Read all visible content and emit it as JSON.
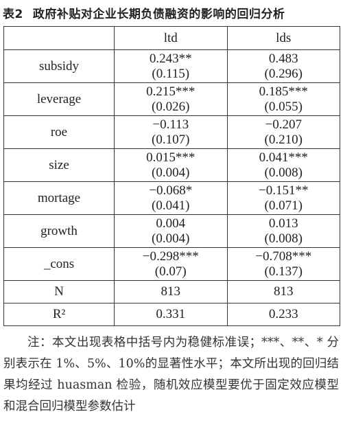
{
  "header": {
    "label": "表2",
    "title": "政府补贴对企业长期负债融资的影响的回归分析"
  },
  "table": {
    "columns": [
      "ltd",
      "lds"
    ],
    "rows": [
      {
        "label": "subsidy",
        "ltd": [
          "0.243**",
          "(0.115)"
        ],
        "lds": [
          "0.483",
          "(0.296)"
        ]
      },
      {
        "label": "leverage",
        "ltd": [
          "0.215***",
          "(0.026)"
        ],
        "lds": [
          "0.185***",
          "(0.055)"
        ]
      },
      {
        "label": "roe",
        "ltd": [
          "−0.113",
          "(0.107)"
        ],
        "lds": [
          "−0.207",
          "(0.210)"
        ]
      },
      {
        "label": "size",
        "ltd": [
          "0.015***",
          "(0.004)"
        ],
        "lds": [
          "0.041***",
          "(0.008)"
        ]
      },
      {
        "label": "mortage",
        "ltd": [
          "−0.068*",
          "(0.041)"
        ],
        "lds": [
          "−0.151**",
          "(0.071)"
        ]
      },
      {
        "label": "growth",
        "ltd": [
          "0.004",
          "(0.004)"
        ],
        "lds": [
          "0.013",
          "(0.008)"
        ]
      },
      {
        "label": "_cons",
        "ltd": [
          "−0.298***",
          "(0.07)"
        ],
        "lds": [
          "−0.708***",
          "(0.137)"
        ]
      },
      {
        "label": "N",
        "ltd": [
          "813"
        ],
        "lds": [
          "813"
        ]
      },
      {
        "label": "R²",
        "ltd": [
          "0.331"
        ],
        "lds": [
          "0.233"
        ]
      }
    ]
  },
  "note": "注：本文出现表格中括号内为稳健标准误；***、**、* 分别表示在 1%、5%、10%的显著性水平；本文所出现的回归结果均经过 huasman 检验，随机效应模型要优于固定效应模型和混合回归模型参数估计"
}
